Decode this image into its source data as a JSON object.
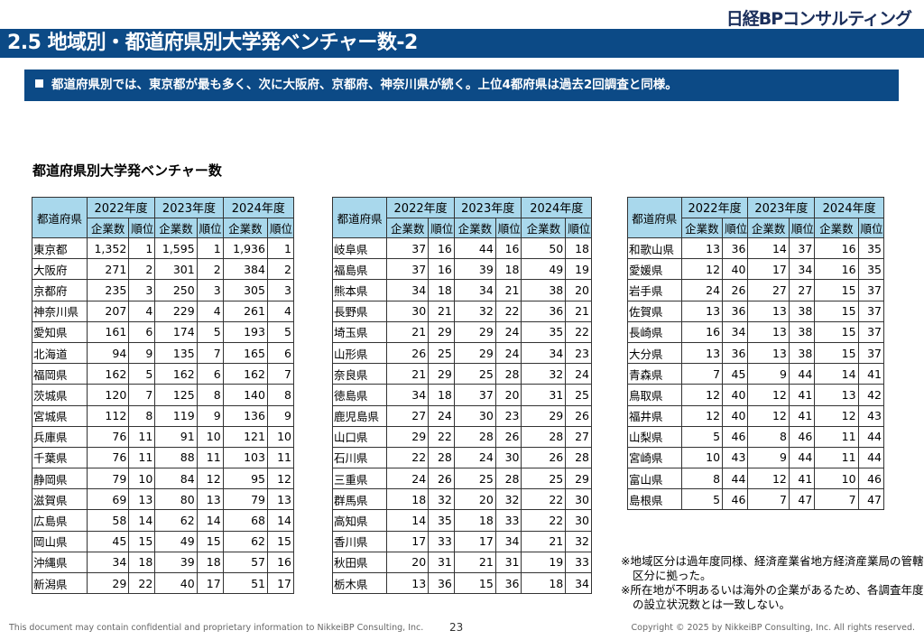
{
  "logo": "日経BPコンサルティング",
  "title": "2.5 地域別・都道府県別大学発ベンチャー数-2",
  "summary": "都道府県別では、東京都が最も多く、次に大阪府、京都府、神奈川県が続く。上位4都府県は過去2回調査と同様。",
  "subtitle": "都道府県別大学発ベンチャー数",
  "table_headers": {
    "prefecture": "都道府県",
    "years": [
      "2022年度",
      "2023年度",
      "2024年度"
    ],
    "count": "企業数",
    "rank": "順位"
  },
  "tables": [
    [
      [
        "東京都",
        "1,352",
        "1",
        "1,595",
        "1",
        "1,936",
        "1"
      ],
      [
        "大阪府",
        "271",
        "2",
        "301",
        "2",
        "384",
        "2"
      ],
      [
        "京都府",
        "235",
        "3",
        "250",
        "3",
        "305",
        "3"
      ],
      [
        "神奈川県",
        "207",
        "4",
        "229",
        "4",
        "261",
        "4"
      ],
      [
        "愛知県",
        "161",
        "6",
        "174",
        "5",
        "193",
        "5"
      ],
      [
        "北海道",
        "94",
        "9",
        "135",
        "7",
        "165",
        "6"
      ],
      [
        "福岡県",
        "162",
        "5",
        "162",
        "6",
        "162",
        "7"
      ],
      [
        "茨城県",
        "120",
        "7",
        "125",
        "8",
        "140",
        "8"
      ],
      [
        "宮城県",
        "112",
        "8",
        "119",
        "9",
        "136",
        "9"
      ],
      [
        "兵庫県",
        "76",
        "11",
        "91",
        "10",
        "121",
        "10"
      ],
      [
        "千葉県",
        "76",
        "11",
        "88",
        "11",
        "103",
        "11"
      ],
      [
        "静岡県",
        "79",
        "10",
        "84",
        "12",
        "95",
        "12"
      ],
      [
        "滋賀県",
        "69",
        "13",
        "80",
        "13",
        "79",
        "13"
      ],
      [
        "広島県",
        "58",
        "14",
        "62",
        "14",
        "68",
        "14"
      ],
      [
        "岡山県",
        "45",
        "15",
        "49",
        "15",
        "62",
        "15"
      ],
      [
        "沖縄県",
        "34",
        "18",
        "39",
        "18",
        "57",
        "16"
      ],
      [
        "新潟県",
        "29",
        "22",
        "40",
        "17",
        "51",
        "17"
      ]
    ],
    [
      [
        "岐阜県",
        "37",
        "16",
        "44",
        "16",
        "50",
        "18"
      ],
      [
        "福島県",
        "37",
        "16",
        "39",
        "18",
        "49",
        "19"
      ],
      [
        "熊本県",
        "34",
        "18",
        "34",
        "21",
        "38",
        "20"
      ],
      [
        "長野県",
        "30",
        "21",
        "32",
        "22",
        "36",
        "21"
      ],
      [
        "埼玉県",
        "21",
        "29",
        "29",
        "24",
        "35",
        "22"
      ],
      [
        "山形県",
        "26",
        "25",
        "29",
        "24",
        "34",
        "23"
      ],
      [
        "奈良県",
        "21",
        "29",
        "25",
        "28",
        "32",
        "24"
      ],
      [
        "徳島県",
        "34",
        "18",
        "37",
        "20",
        "31",
        "25"
      ],
      [
        "鹿児島県",
        "27",
        "24",
        "30",
        "23",
        "29",
        "26"
      ],
      [
        "山口県",
        "29",
        "22",
        "28",
        "26",
        "28",
        "27"
      ],
      [
        "石川県",
        "22",
        "28",
        "24",
        "30",
        "26",
        "28"
      ],
      [
        "三重県",
        "24",
        "26",
        "25",
        "28",
        "25",
        "29"
      ],
      [
        "群馬県",
        "18",
        "32",
        "20",
        "32",
        "22",
        "30"
      ],
      [
        "高知県",
        "14",
        "35",
        "18",
        "33",
        "22",
        "30"
      ],
      [
        "香川県",
        "17",
        "33",
        "17",
        "34",
        "21",
        "32"
      ],
      [
        "秋田県",
        "20",
        "31",
        "21",
        "31",
        "19",
        "33"
      ],
      [
        "栃木県",
        "13",
        "36",
        "15",
        "36",
        "18",
        "34"
      ]
    ],
    [
      [
        "和歌山県",
        "13",
        "36",
        "14",
        "37",
        "16",
        "35"
      ],
      [
        "愛媛県",
        "12",
        "40",
        "17",
        "34",
        "16",
        "35"
      ],
      [
        "岩手県",
        "24",
        "26",
        "27",
        "27",
        "15",
        "37"
      ],
      [
        "佐賀県",
        "13",
        "36",
        "13",
        "38",
        "15",
        "37"
      ],
      [
        "長崎県",
        "16",
        "34",
        "13",
        "38",
        "15",
        "37"
      ],
      [
        "大分県",
        "13",
        "36",
        "13",
        "38",
        "15",
        "37"
      ],
      [
        "青森県",
        "7",
        "45",
        "9",
        "44",
        "14",
        "41"
      ],
      [
        "鳥取県",
        "12",
        "40",
        "12",
        "41",
        "13",
        "42"
      ],
      [
        "福井県",
        "12",
        "40",
        "12",
        "41",
        "12",
        "43"
      ],
      [
        "山梨県",
        "5",
        "46",
        "8",
        "46",
        "11",
        "44"
      ],
      [
        "宮崎県",
        "10",
        "43",
        "9",
        "44",
        "11",
        "44"
      ],
      [
        "富山県",
        "8",
        "44",
        "12",
        "41",
        "10",
        "46"
      ],
      [
        "島根県",
        "5",
        "46",
        "7",
        "47",
        "7",
        "47"
      ]
    ]
  ],
  "notes": [
    "※地域区分は過年度同様、経済産業省地方経済産業局の管轄区分に拠った。",
    "※所在地が不明あるいは海外の企業があるため、各調査年度の設立状況数とは一致しない。"
  ],
  "footer": {
    "left": "This document may contain confidential and proprietary information to NikkeiBP Consulting, Inc.",
    "page": "23",
    "right": "Copyright © 2025 by NikkeiBP Consulting, Inc. All rights reserved."
  }
}
